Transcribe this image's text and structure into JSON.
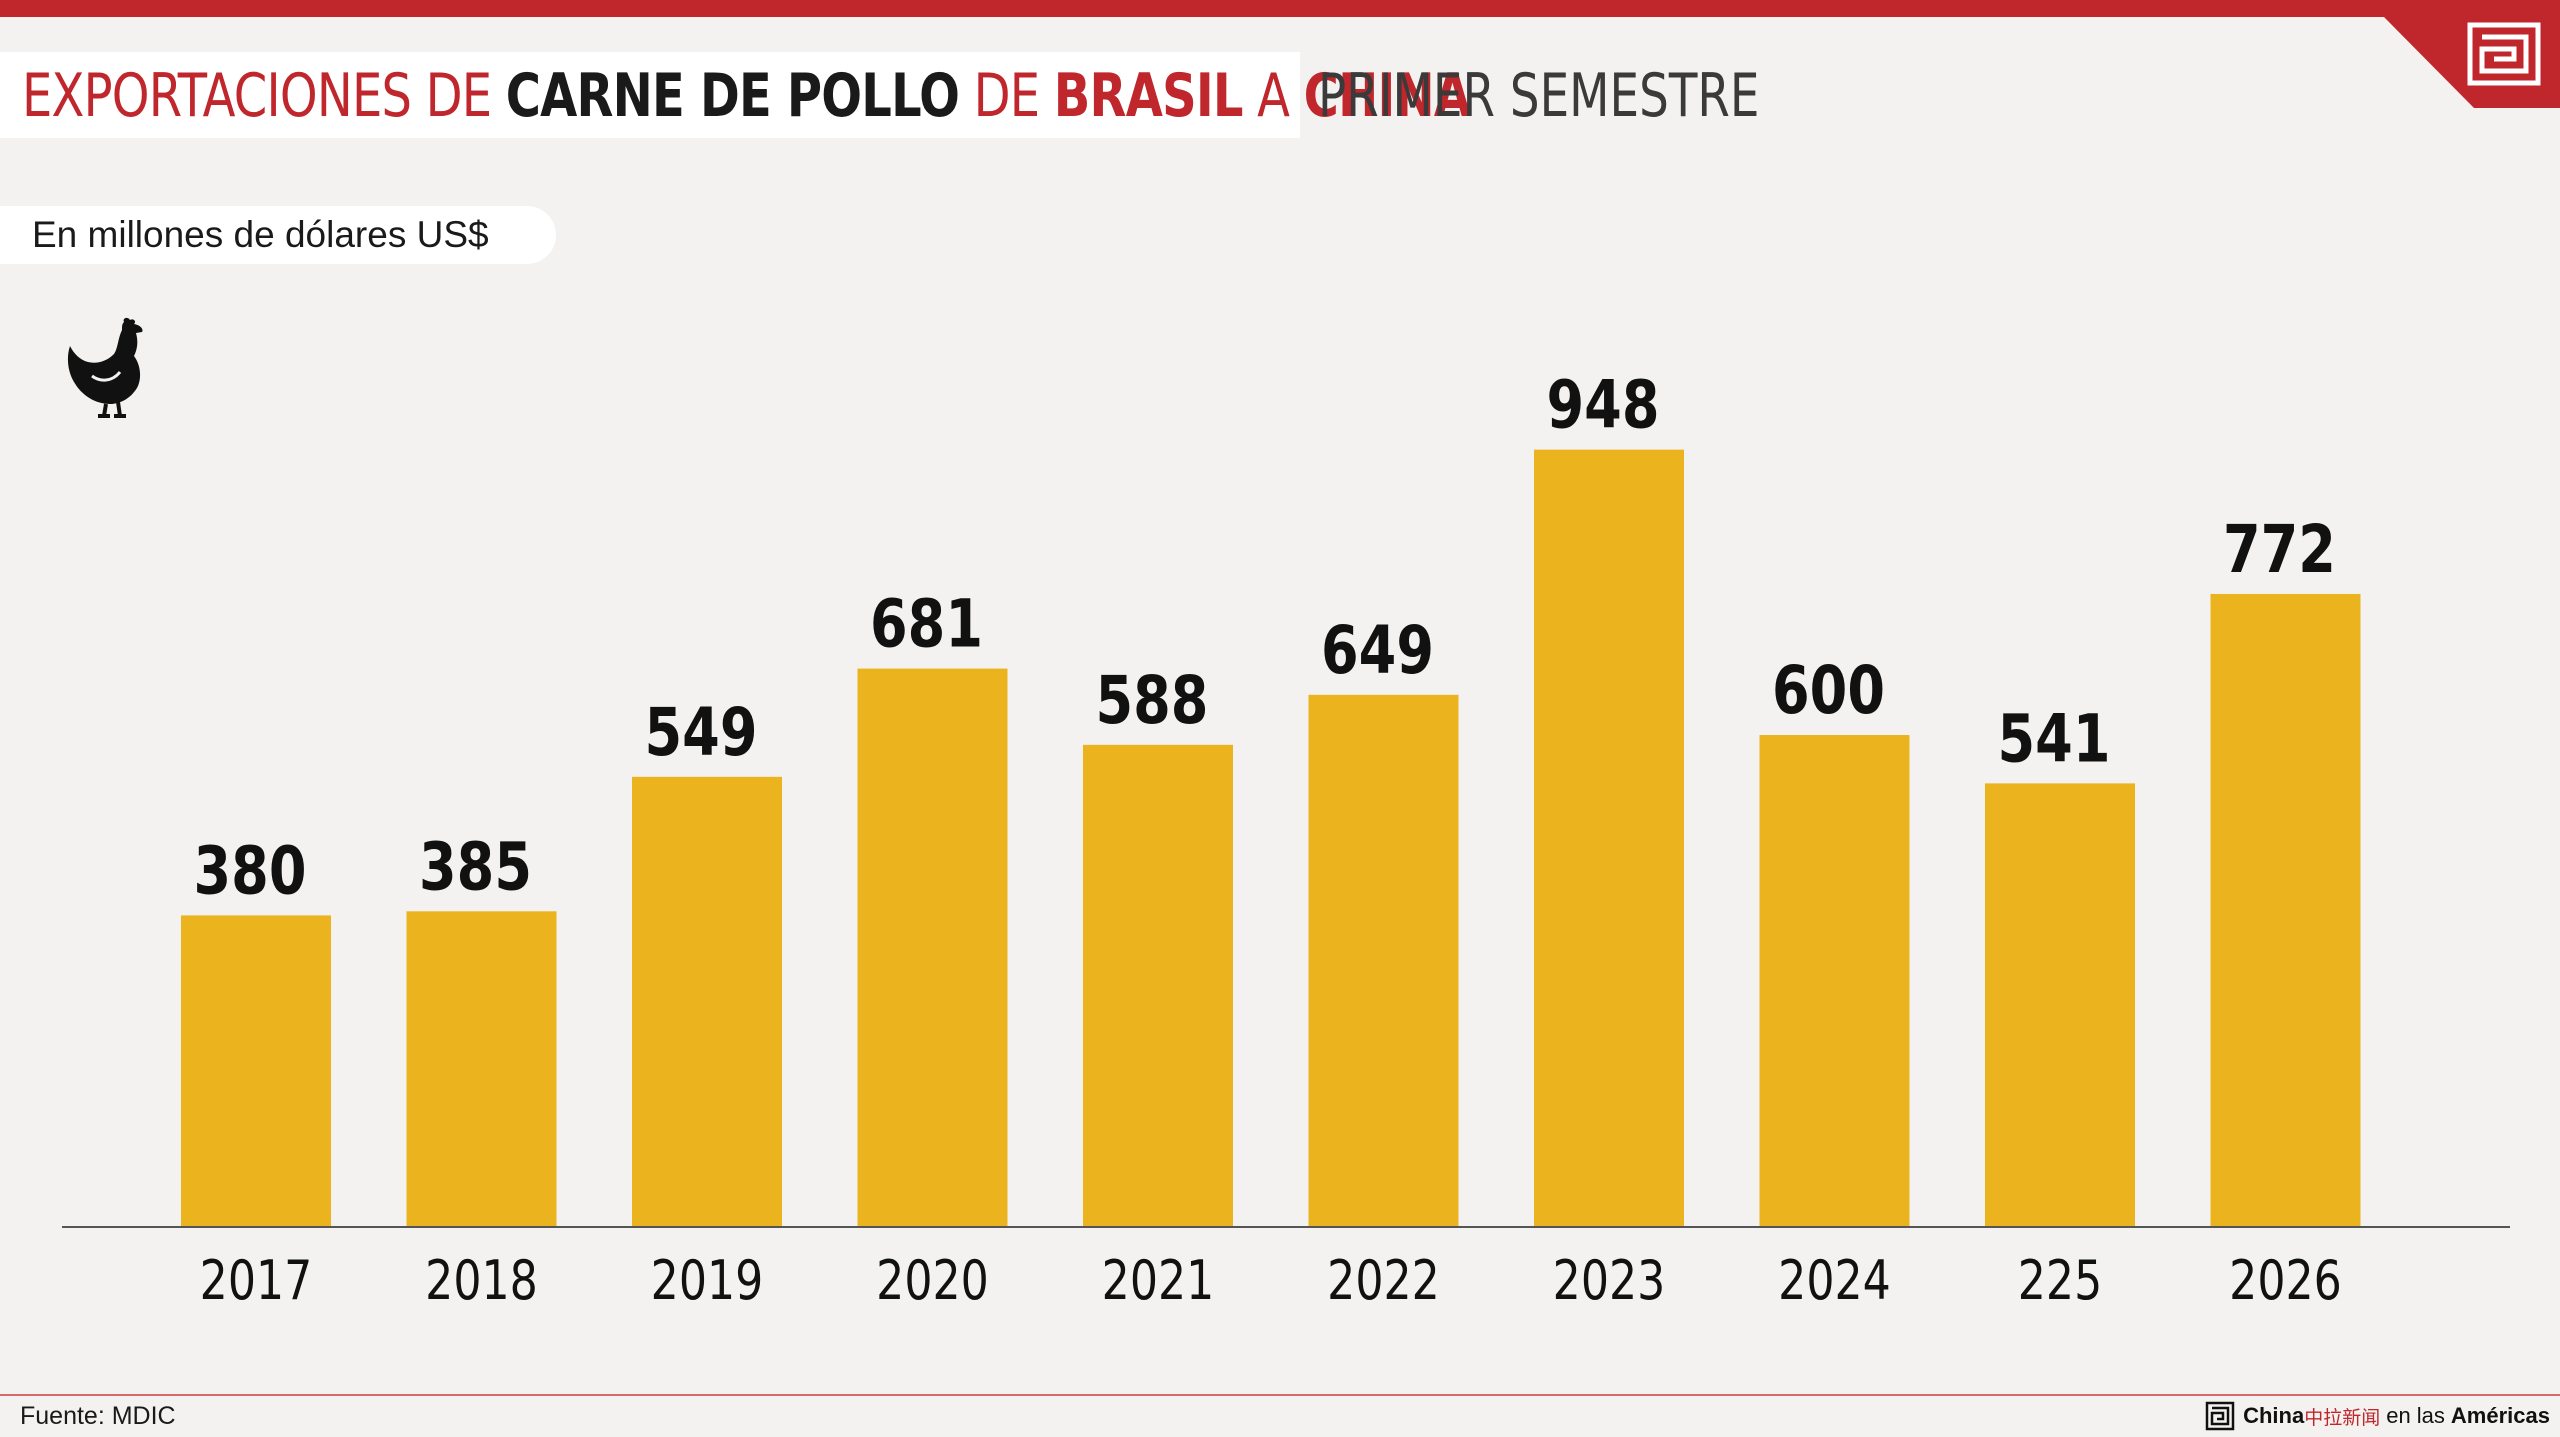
{
  "header": {
    "title_parts": [
      "EXPORTACIONES DE ",
      "CARNE DE POLLO",
      " DE ",
      "BRASIL",
      " A ",
      "CHINA"
    ],
    "subtitle": "PRIMER SEMESTRE",
    "units": "En millones de dólares US$"
  },
  "colors": {
    "accent_red": "#c0272d",
    "bar": "#ebb41f",
    "background": "#f3f2f0"
  },
  "icons": {
    "chart_icon": "chicken-icon",
    "logo": "maze-logo-icon"
  },
  "chart_data": {
    "type": "bar",
    "categories": [
      "2017",
      "2018",
      "2019",
      "2020",
      "2021",
      "2022",
      "2023",
      "2024",
      "225",
      "2026"
    ],
    "values": [
      380,
      385,
      549,
      681,
      588,
      649,
      948,
      600,
      541,
      772
    ],
    "title": "EXPORTACIONES DE CARNE DE POLLO DE BRASIL A CHINA",
    "subtitle": "PRIMER SEMESTRE",
    "ylabel": "En millones de dólares US$",
    "xlabel": "",
    "ylim": [
      0,
      1000
    ],
    "grid": false,
    "data_labels": true
  },
  "footer": {
    "source": "Fuente: MDIC",
    "brand_china": "China",
    "brand_cn": "中拉新闻",
    "brand_mid": "en las",
    "brand_americas": "Américas"
  }
}
